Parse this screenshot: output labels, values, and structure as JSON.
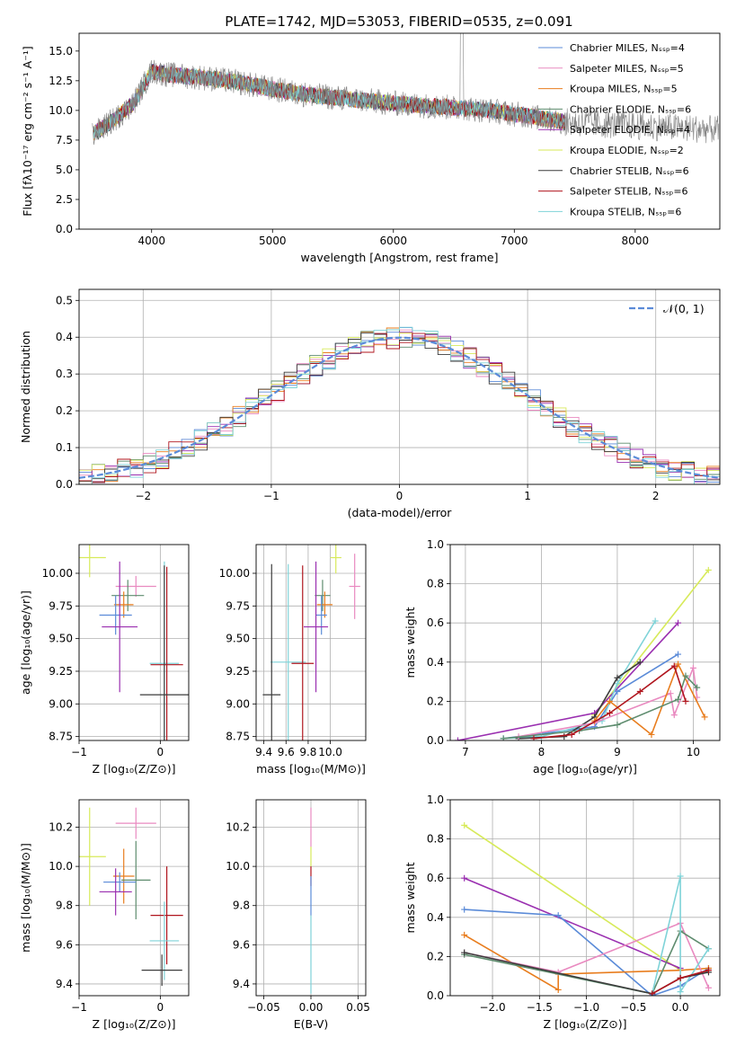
{
  "figure": {
    "title": "PLATE=1742, MJD=53053, FIBERID=0535, z=0.091"
  },
  "palette": {
    "chabrier_miles": "#5b8bd8",
    "salpeter_miles": "#e98ac0",
    "kroupa_miles": "#e87d1e",
    "chabrier_elodie": "#5e8c6e",
    "salpeter_elodie": "#9a2fb0",
    "kroupa_elodie": "#d7ea5a",
    "chabrier_stelib": "#3c3c3c",
    "salpeter_stelib": "#b0151e",
    "kroupa_stelib": "#7fd3d8",
    "data": "#808080",
    "normal": "#5b8bd8"
  },
  "chart_data": [
    {
      "type": "line",
      "id": "spectrum",
      "title": "PLATE=1742, MJD=53053, FIBERID=0535, z=0.091",
      "xlabel": "wavelength [Angstrom, rest frame]",
      "ylabel": "Flux [fλ10⁻¹⁷ erg cm⁻² s⁻¹ A⁻¹]",
      "xlim": [
        3400,
        8700
      ],
      "ylim": [
        0,
        16.5
      ],
      "xticks": [
        4000,
        5000,
        6000,
        7000,
        8000
      ],
      "xtick_labels": [
        "4000",
        "5000",
        "6000",
        "7000",
        "8000"
      ],
      "yticks": [
        0,
        2.5,
        5,
        7.5,
        10,
        12.5,
        15
      ],
      "ytick_labels": [
        "0.0",
        "2.5",
        "5.0",
        "7.5",
        "10.0",
        "12.5",
        "15.0"
      ],
      "grid": false,
      "legend": "upper-right",
      "continuum_x": [
        3520,
        3700,
        3850,
        4000,
        4150,
        4400,
        4700,
        5000,
        5300,
        5600,
        6000,
        6400,
        6800,
        7200,
        7420
      ],
      "continuum_y": [
        8.0,
        9.3,
        10.6,
        13.3,
        13.0,
        12.8,
        12.4,
        11.8,
        11.3,
        11.0,
        10.6,
        10.3,
        10.0,
        9.4,
        9.0
      ],
      "series": [
        {
          "name": "Chabrier MILES, Nₛₛₚ=4",
          "color_key": "chabrier_miles"
        },
        {
          "name": "Salpeter MILES, Nₛₛₚ=5",
          "color_key": "salpeter_miles"
        },
        {
          "name": "Kroupa MILES, Nₛₛₚ=5",
          "color_key": "kroupa_miles"
        },
        {
          "name": "Chabrier ELODIE, Nₛₛₚ=6",
          "color_key": "chabrier_elodie"
        },
        {
          "name": "Salpeter ELODIE, Nₛₛₚ=4",
          "color_key": "salpeter_elodie"
        },
        {
          "name": "Kroupa ELODIE, Nₛₛₚ=2",
          "color_key": "kroupa_elodie"
        },
        {
          "name": "Chabrier STELIB, Nₛₛₚ=6",
          "color_key": "chabrier_stelib"
        },
        {
          "name": "Salpeter STELIB, Nₛₛₚ=6",
          "color_key": "salpeter_stelib"
        },
        {
          "name": "Kroupa STELIB, Nₛₛₚ=6",
          "color_key": "kroupa_stelib"
        }
      ]
    },
    {
      "type": "line",
      "id": "residuals",
      "xlabel": "(data-model)/error",
      "ylabel": "Normed distribution",
      "xlim": [
        -2.5,
        2.5
      ],
      "ylim": [
        0,
        0.53
      ],
      "xticks": [
        -2,
        -1,
        0,
        1,
        2
      ],
      "xtick_labels": [
        "−2",
        "−1",
        "0",
        "1",
        "2"
      ],
      "yticks": [
        0,
        0.1,
        0.2,
        0.3,
        0.4,
        0.5
      ],
      "ytick_labels": [
        "0.0",
        "0.1",
        "0.2",
        "0.3",
        "0.4",
        "0.5"
      ],
      "grid": true,
      "legend": "upper-right",
      "legend_label": "𝒩(0, 1)",
      "gaussian": {
        "mean": 0,
        "sigma": 1
      }
    },
    {
      "type": "scatter",
      "id": "age_vs_Z",
      "xlabel": "Z [log₁₀(Z/Z⊙)]",
      "ylabel": "age  [log₁₀(age/yr)]",
      "xlim": [
        -1,
        0.35
      ],
      "ylim": [
        8.72,
        10.22
      ],
      "xticks": [
        -1,
        0
      ],
      "xtick_labels": [
        "−1",
        "0"
      ],
      "yticks": [
        8.75,
        9.0,
        9.25,
        9.5,
        9.75,
        10.0
      ],
      "ytick_labels": [
        "8.75",
        "9.00",
        "9.25",
        "9.50",
        "9.75",
        "10.00"
      ],
      "grid": true,
      "points": [
        {
          "key": "kroupa_elodie",
          "x": -0.87,
          "y": 10.12,
          "dx": 0.2,
          "dy": 0.15
        },
        {
          "key": "salpeter_miles",
          "x": -0.3,
          "y": 9.9,
          "dx": 0.25,
          "dy": 0.08
        },
        {
          "key": "chabrier_elodie",
          "x": -0.4,
          "y": 9.83,
          "dx": 0.2,
          "dy": 0.12
        },
        {
          "key": "kroupa_miles",
          "x": -0.45,
          "y": 9.76,
          "dx": 0.12,
          "dy": 0.1
        },
        {
          "key": "chabrier_miles",
          "x": -0.55,
          "y": 9.68,
          "dx": 0.2,
          "dy": 0.15
        },
        {
          "key": "salpeter_elodie",
          "x": -0.5,
          "y": 9.59,
          "dx": 0.22,
          "dy": 0.5
        },
        {
          "key": "kroupa_stelib",
          "x": 0.05,
          "y": 9.31,
          "dx": 0.18,
          "dy": 0.78
        },
        {
          "key": "salpeter_stelib",
          "x": 0.08,
          "y": 9.3,
          "dx": 0.2,
          "dy": 0.75
        },
        {
          "key": "chabrier_stelib",
          "x": 0.05,
          "y": 9.07,
          "dx": 0.3,
          "dy": 0.99
        }
      ]
    },
    {
      "type": "scatter",
      "id": "age_vs_mass",
      "xlabel": "mass [log₁₀(M/M⊙)]",
      "ylabel": "",
      "xlim": [
        9.33,
        10.32
      ],
      "ylim": [
        8.72,
        10.22
      ],
      "xticks": [
        9.4,
        9.6,
        9.8,
        10.0
      ],
      "xtick_labels": [
        "9.4",
        "9.6",
        "9.8",
        "10.0"
      ],
      "yticks": [
        8.75,
        9.0,
        9.25,
        9.5,
        9.75,
        10.0
      ],
      "ytick_labels": [
        "8.75",
        "9.00",
        "9.25",
        "9.50",
        "9.75",
        "10.00"
      ],
      "grid": true,
      "points": [
        {
          "key": "kroupa_elodie",
          "x": 10.05,
          "y": 10.12,
          "dx": 0.05,
          "dy": 0.12
        },
        {
          "key": "salpeter_miles",
          "x": 10.22,
          "y": 9.9,
          "dx": 0.05,
          "dy": 0.25
        },
        {
          "key": "chabrier_elodie",
          "x": 9.93,
          "y": 9.83,
          "dx": 0.07,
          "dy": 0.12
        },
        {
          "key": "kroupa_miles",
          "x": 9.95,
          "y": 9.76,
          "dx": 0.07,
          "dy": 0.1
        },
        {
          "key": "chabrier_miles",
          "x": 9.92,
          "y": 9.68,
          "dx": 0.05,
          "dy": 0.15
        },
        {
          "key": "salpeter_elodie",
          "x": 9.87,
          "y": 9.59,
          "dx": 0.11,
          "dy": 0.5
        },
        {
          "key": "kroupa_stelib",
          "x": 9.62,
          "y": 9.32,
          "dx": 0.16,
          "dy": 0.75
        },
        {
          "key": "salpeter_stelib",
          "x": 9.75,
          "y": 9.31,
          "dx": 0.1,
          "dy": 0.75
        },
        {
          "key": "chabrier_stelib",
          "x": 9.47,
          "y": 9.07,
          "dx": 0.08,
          "dy": 1.0
        }
      ]
    },
    {
      "type": "line",
      "id": "weights_vs_age",
      "xlabel": "age  [log₁₀(age/yr)]",
      "ylabel": "mass weight",
      "xlim": [
        6.8,
        10.35
      ],
      "ylim": [
        0,
        1
      ],
      "xticks": [
        7,
        8,
        9,
        10
      ],
      "xtick_labels": [
        "7",
        "8",
        "9",
        "10"
      ],
      "yticks": [
        0,
        0.2,
        0.4,
        0.6,
        0.8,
        1.0
      ],
      "ytick_labels": [
        "0.0",
        "0.2",
        "0.4",
        "0.6",
        "0.8",
        "1.0"
      ],
      "grid": true,
      "series": [
        {
          "key": "kroupa_elodie",
          "x": [
            8.7,
            10.2
          ],
          "y": [
            0.13,
            0.87
          ]
        },
        {
          "key": "salpeter_elodie",
          "x": [
            6.9,
            8.7,
            9.8
          ],
          "y": [
            0.0,
            0.14,
            0.6
          ]
        },
        {
          "key": "chabrier_miles",
          "x": [
            7.5,
            8.7,
            9.0,
            9.8
          ],
          "y": [
            0.01,
            0.07,
            0.25,
            0.44
          ]
        },
        {
          "key": "kroupa_stelib",
          "x": [
            7.5,
            8.0,
            8.8,
            9.0,
            9.5
          ],
          "y": [
            0.01,
            0.02,
            0.1,
            0.29,
            0.61
          ]
        },
        {
          "key": "chabrier_stelib",
          "x": [
            7.7,
            8.3,
            8.7,
            9.0,
            9.3
          ],
          "y": [
            0.01,
            0.02,
            0.12,
            0.32,
            0.4
          ]
        },
        {
          "key": "salpeter_miles",
          "x": [
            7.7,
            8.7,
            9.7,
            9.75,
            10.0,
            10.05
          ],
          "y": [
            0.02,
            0.09,
            0.24,
            0.13,
            0.37,
            0.22
          ]
        },
        {
          "key": "kroupa_miles",
          "x": [
            8.7,
            8.9,
            9.45,
            9.8,
            10.15
          ],
          "y": [
            0.1,
            0.2,
            0.03,
            0.39,
            0.12
          ]
        },
        {
          "key": "chabrier_elodie",
          "x": [
            7.5,
            8.5,
            9.0,
            9.8,
            9.9,
            10.05
          ],
          "y": [
            0.01,
            0.05,
            0.08,
            0.21,
            0.33,
            0.27
          ]
        },
        {
          "key": "salpeter_stelib",
          "x": [
            7.9,
            8.4,
            8.9,
            9.3,
            9.75,
            9.9
          ],
          "y": [
            0.01,
            0.03,
            0.14,
            0.25,
            0.38,
            0.2
          ]
        }
      ]
    },
    {
      "type": "scatter",
      "id": "mass_vs_Z",
      "xlabel": "Z [log₁₀(Z/Z⊙)]",
      "ylabel": "mass [log₁₀(M/M⊙)]",
      "xlim": [
        -1,
        0.35
      ],
      "ylim": [
        9.34,
        10.34
      ],
      "xticks": [
        -1,
        0
      ],
      "xtick_labels": [
        "−1",
        "0"
      ],
      "yticks": [
        9.4,
        9.6,
        9.8,
        10.0,
        10.2
      ],
      "ytick_labels": [
        "9.4",
        "9.6",
        "9.8",
        "10.0",
        "10.2"
      ],
      "grid": true,
      "points": [
        {
          "key": "kroupa_elodie",
          "x": -0.87,
          "y": 10.05,
          "dx": 0.2,
          "dy": 0.25
        },
        {
          "key": "salpeter_miles",
          "x": -0.3,
          "y": 10.22,
          "dx": 0.25,
          "dy": 0.08
        },
        {
          "key": "kroupa_miles",
          "x": -0.45,
          "y": 9.95,
          "dx": 0.13,
          "dy": 0.14
        },
        {
          "key": "chabrier_elodie",
          "x": -0.3,
          "y": 9.93,
          "dx": 0.18,
          "dy": 0.2
        },
        {
          "key": "chabrier_miles",
          "x": -0.5,
          "y": 9.92,
          "dx": 0.2,
          "dy": 0.05
        },
        {
          "key": "salpeter_elodie",
          "x": -0.55,
          "y": 9.87,
          "dx": 0.2,
          "dy": 0.12
        },
        {
          "key": "salpeter_stelib",
          "x": 0.08,
          "y": 9.75,
          "dx": 0.2,
          "dy": 0.25
        },
        {
          "key": "kroupa_stelib",
          "x": 0.05,
          "y": 9.62,
          "dx": 0.18,
          "dy": 0.2
        },
        {
          "key": "chabrier_stelib",
          "x": 0.02,
          "y": 9.47,
          "dx": 0.25,
          "dy": 0.08
        }
      ]
    },
    {
      "type": "scatter",
      "id": "mass_vs_ebv",
      "xlabel": "E(B-V)",
      "ylabel": "",
      "xlim": [
        -0.058,
        0.058
      ],
      "ylim": [
        9.34,
        10.34
      ],
      "xticks": [
        -0.05,
        0,
        0.05
      ],
      "xtick_labels": [
        "−0.05",
        "0.00",
        "0.05"
      ],
      "yticks": [
        9.4,
        9.6,
        9.8,
        10.0,
        10.2
      ],
      "ytick_labels": [
        "9.4",
        "9.6",
        "9.8",
        "10.0",
        "10.2"
      ],
      "grid": true,
      "points": [
        {
          "key": "salpeter_miles",
          "x": 0,
          "y": 10.2,
          "dx": 0,
          "dy": 0.1
        },
        {
          "key": "kroupa_elodie",
          "x": 0,
          "y": 10.05,
          "dx": 0,
          "dy": 0.05
        },
        {
          "key": "salpeter_stelib",
          "x": 0,
          "y": 9.95,
          "dx": 0,
          "dy": 0.05
        },
        {
          "key": "kroupa_stelib",
          "x": 0,
          "y": 9.55,
          "dx": 0,
          "dy": 0.2
        },
        {
          "key": "chabrier_miles",
          "x": 0,
          "y": 9.85,
          "dx": 0,
          "dy": 0.1
        }
      ]
    },
    {
      "type": "line",
      "id": "weights_vs_Z",
      "xlabel": "Z [log₁₀(Z/Z⊙)]",
      "ylabel": "mass weight",
      "xlim": [
        -2.45,
        0.42
      ],
      "ylim": [
        0,
        1
      ],
      "xticks": [
        -2.0,
        -1.5,
        -1.0,
        -0.5,
        0.0
      ],
      "xtick_labels": [
        "−2.0",
        "−1.5",
        "−1.0",
        "−0.5",
        "0.0"
      ],
      "yticks": [
        0,
        0.2,
        0.4,
        0.6,
        0.8,
        1.0
      ],
      "ytick_labels": [
        "0.0",
        "0.2",
        "0.4",
        "0.6",
        "0.8",
        "1.0"
      ],
      "grid": true,
      "series": [
        {
          "key": "kroupa_elodie",
          "x": [
            -2.3,
            0.0
          ],
          "y": [
            0.87,
            0.13
          ]
        },
        {
          "key": "salpeter_elodie",
          "x": [
            -2.3,
            0.0
          ],
          "y": [
            0.6,
            0.14
          ]
        },
        {
          "key": "chabrier_miles",
          "x": [
            -2.3,
            -1.3,
            -0.3,
            0.0,
            0.3
          ],
          "y": [
            0.44,
            0.41,
            0.0,
            0.05,
            0.14
          ]
        },
        {
          "key": "kroupa_miles",
          "x": [
            -2.3,
            -1.3,
            -1.3,
            0.0,
            0.3
          ],
          "y": [
            0.31,
            0.03,
            0.11,
            0.13,
            0.14
          ]
        },
        {
          "key": "salpeter_miles",
          "x": [
            -2.3,
            -1.3,
            0.0,
            0.3
          ],
          "y": [
            0.22,
            0.12,
            0.37,
            0.04
          ]
        },
        {
          "key": "chabrier_elodie",
          "x": [
            -2.3,
            -0.3,
            0.0,
            0.3
          ],
          "y": [
            0.21,
            0.01,
            0.33,
            0.24
          ]
        },
        {
          "key": "kroupa_stelib",
          "x": [
            -0.3,
            0.0,
            0.0,
            0.3
          ],
          "y": [
            0.01,
            0.61,
            0.02,
            0.24
          ]
        },
        {
          "key": "chabrier_stelib",
          "x": [
            -2.3,
            -0.3,
            0.0,
            0.3
          ],
          "y": [
            0.22,
            0.01,
            0.09,
            0.12
          ]
        },
        {
          "key": "salpeter_stelib",
          "x": [
            -0.3,
            0.0,
            0.3
          ],
          "y": [
            0.01,
            0.09,
            0.13
          ]
        }
      ]
    }
  ]
}
